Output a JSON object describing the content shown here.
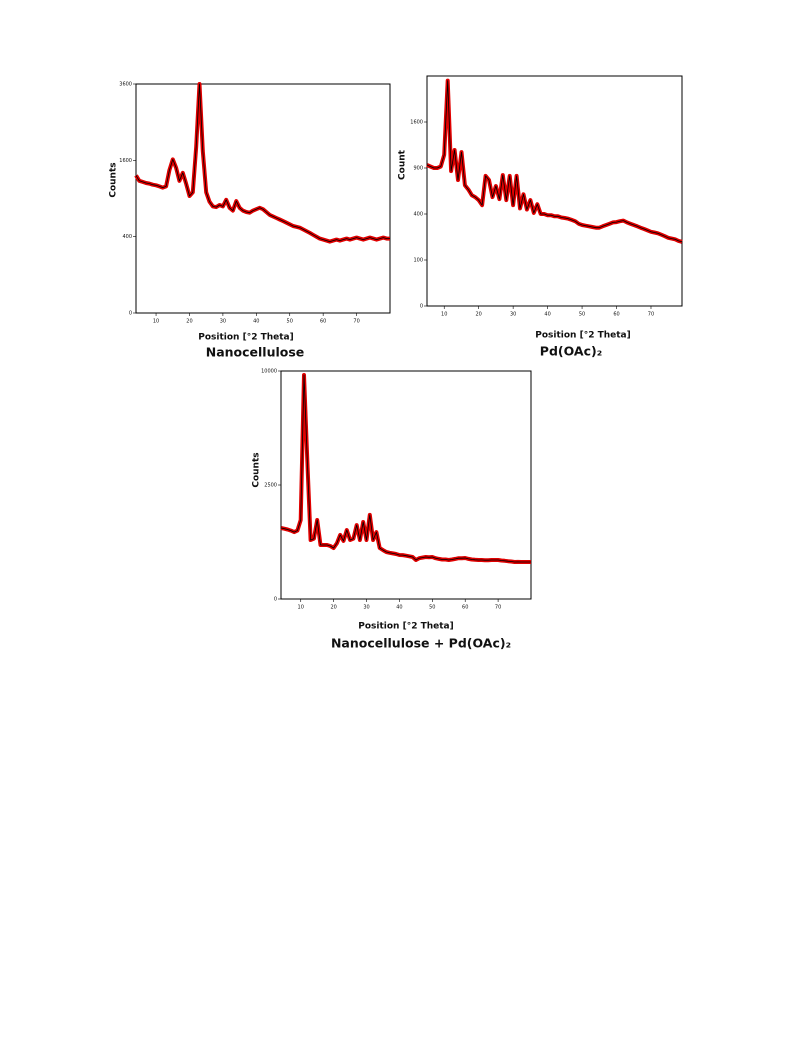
{
  "chart_data": [
    {
      "type": "line",
      "title": "Nanocellulose",
      "x_label": "Position [°2 Theta]",
      "y_label": "Counts",
      "yscale": "sqrt",
      "xlim": [
        4,
        80
      ],
      "ylim": [
        0,
        3600
      ],
      "xticks": [
        10,
        20,
        30,
        40,
        50,
        60,
        70
      ],
      "yticks": [
        0,
        400,
        1600,
        3600
      ],
      "x": [
        4,
        5,
        6,
        7,
        8,
        9,
        10,
        11,
        12,
        13,
        14,
        15,
        16,
        17,
        18,
        19,
        20,
        21,
        22,
        23,
        24,
        25,
        26,
        27,
        28,
        29,
        30,
        31,
        32,
        33,
        34,
        35,
        36,
        37,
        38,
        39,
        40,
        41,
        42,
        43,
        44,
        45,
        46,
        47,
        48,
        49,
        50,
        51,
        52,
        53,
        54,
        55,
        56,
        57,
        58,
        59,
        60,
        61,
        62,
        63,
        64,
        65,
        66,
        67,
        68,
        69,
        70,
        71,
        72,
        73,
        74,
        75,
        76,
        77,
        78,
        79,
        80
      ],
      "series": [
        {
          "color": "#000000",
          "band_color": "#e00000",
          "values": [
            1300,
            1200,
            1180,
            1160,
            1150,
            1130,
            1120,
            1100,
            1080,
            1100,
            1400,
            1620,
            1450,
            1200,
            1350,
            1150,
            940,
            1000,
            1900,
            3600,
            1800,
            1000,
            850,
            780,
            770,
            800,
            780,
            880,
            760,
            720,
            860,
            760,
            720,
            700,
            690,
            720,
            740,
            760,
            740,
            700,
            660,
            640,
            620,
            600,
            580,
            560,
            540,
            520,
            510,
            500,
            480,
            460,
            440,
            420,
            400,
            380,
            370,
            360,
            350,
            360,
            370,
            360,
            370,
            380,
            370,
            380,
            390,
            380,
            370,
            380,
            390,
            380,
            370,
            380,
            390,
            380,
            380
          ]
        }
      ]
    },
    {
      "type": "line",
      "title": "Pd(OAc)₂",
      "x_label": "Position [°2 Theta]",
      "y_label": "Count",
      "yscale": "sqrt",
      "xlim": [
        5,
        79
      ],
      "ylim": [
        0,
        2500
      ],
      "xticks": [
        10,
        20,
        30,
        40,
        50,
        60,
        70
      ],
      "yticks": [
        0,
        100,
        400,
        900,
        1600
      ],
      "x": [
        5,
        6,
        7,
        8,
        9,
        10,
        11,
        12,
        13,
        14,
        15,
        16,
        17,
        18,
        19,
        20,
        21,
        22,
        23,
        24,
        25,
        26,
        27,
        28,
        29,
        30,
        31,
        32,
        33,
        34,
        35,
        36,
        37,
        38,
        39,
        40,
        41,
        42,
        43,
        44,
        45,
        46,
        47,
        48,
        49,
        50,
        51,
        52,
        53,
        54,
        55,
        56,
        57,
        58,
        59,
        60,
        61,
        62,
        63,
        64,
        65,
        66,
        67,
        68,
        69,
        70,
        71,
        72,
        73,
        74,
        75,
        76,
        77,
        78,
        79
      ],
      "series": [
        {
          "color": "#000000",
          "band_color": "#e00000",
          "values": [
            940,
            920,
            900,
            900,
            920,
            1080,
            2400,
            860,
            1150,
            750,
            1120,
            690,
            640,
            580,
            560,
            530,
            480,
            800,
            750,
            560,
            680,
            540,
            810,
            530,
            800,
            480,
            800,
            450,
            590,
            440,
            530,
            410,
            490,
            400,
            400,
            390,
            390,
            380,
            380,
            370,
            366,
            360,
            350,
            340,
            320,
            310,
            305,
            300,
            295,
            290,
            290,
            300,
            310,
            320,
            330,
            333,
            340,
            345,
            330,
            320,
            310,
            300,
            290,
            280,
            270,
            260,
            255,
            250,
            240,
            230,
            220,
            215,
            210,
            200,
            195
          ]
        }
      ]
    },
    {
      "type": "line",
      "title": "Nanocellulose + Pd(OAc)₂",
      "x_label": "Position [°2 Theta]",
      "y_label": "Counts",
      "yscale": "sqrt",
      "xlim": [
        4,
        80
      ],
      "ylim": [
        0,
        10000
      ],
      "xticks": [
        10,
        20,
        30,
        40,
        50,
        60,
        70
      ],
      "yticks": [
        0,
        2500,
        10000
      ],
      "x": [
        4,
        5,
        6,
        7,
        8,
        9,
        10,
        11,
        12,
        13,
        14,
        15,
        16,
        17,
        18,
        19,
        20,
        21,
        22,
        23,
        24,
        25,
        26,
        27,
        28,
        29,
        30,
        31,
        32,
        33,
        34,
        35,
        36,
        37,
        38,
        39,
        40,
        41,
        42,
        43,
        44,
        45,
        46,
        47,
        48,
        49,
        50,
        51,
        52,
        53,
        54,
        55,
        56,
        57,
        58,
        59,
        60,
        61,
        62,
        63,
        64,
        65,
        66,
        67,
        68,
        69,
        70,
        71,
        72,
        73,
        74,
        75,
        76,
        77,
        78,
        79,
        80
      ],
      "series": [
        {
          "color": "#000000",
          "band_color": "#e00000",
          "values": [
            970,
            950,
            930,
            900,
            860,
            900,
            1200,
            9650,
            3700,
            670,
            700,
            1200,
            560,
            560,
            560,
            540,
            500,
            600,
            790,
            650,
            915,
            670,
            700,
            1050,
            670,
            1140,
            670,
            1360,
            670,
            860,
            500,
            460,
            425,
            410,
            400,
            390,
            373,
            370,
            360,
            350,
            340,
            293,
            320,
            330,
            340,
            335,
            340,
            320,
            310,
            300,
            300,
            293,
            300,
            310,
            320,
            320,
            323,
            310,
            300,
            295,
            293,
            293,
            290,
            290,
            293,
            293,
            293,
            285,
            280,
            275,
            270,
            263,
            265,
            263,
            263,
            263,
            263
          ]
        }
      ]
    }
  ]
}
